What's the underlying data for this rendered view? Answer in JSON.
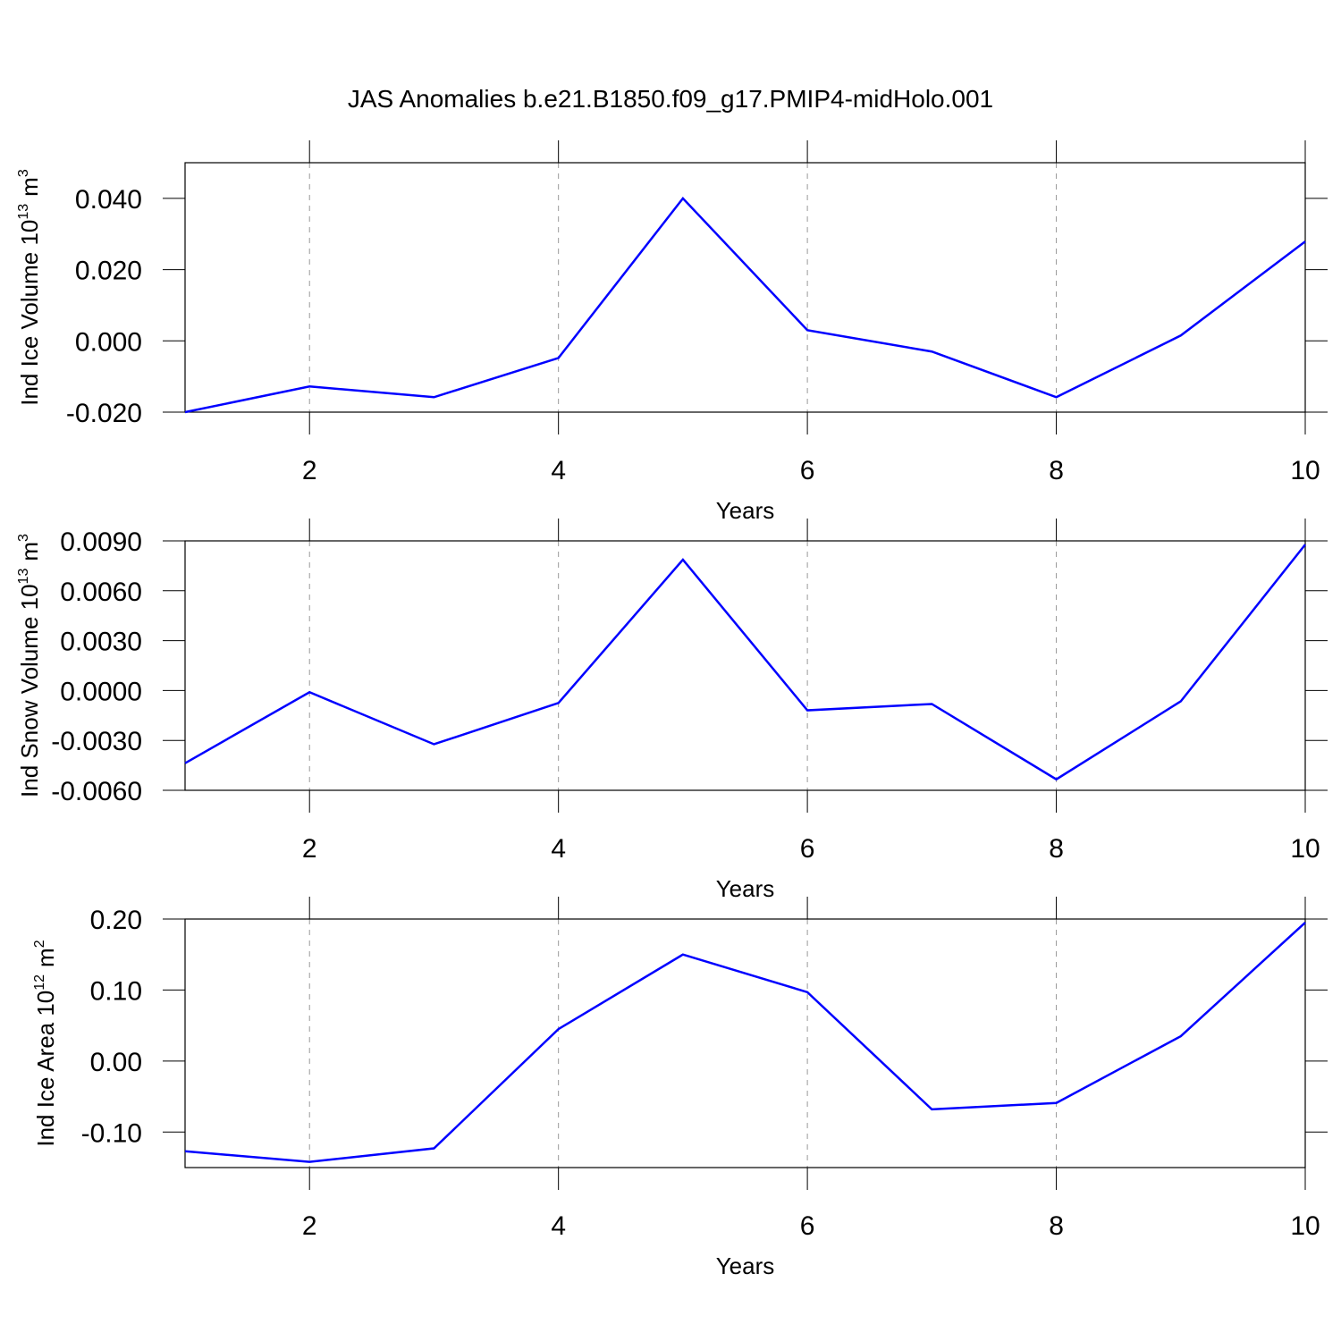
{
  "title": "JAS Anomalies b.e21.B1850.f09_g17.PMIP4-midHolo.001",
  "chart_data": [
    {
      "type": "line",
      "xlabel": "Years",
      "ylabel": {
        "text": "Ind Ice Volume 10",
        "exponent": "13",
        "unit": "m",
        "unit_exponent": "3"
      },
      "x": [
        1,
        2,
        3,
        4,
        5,
        6,
        7,
        8,
        9,
        10
      ],
      "values": [
        -0.02,
        -0.0128,
        -0.0158,
        -0.0048,
        0.04,
        0.003,
        -0.003,
        -0.0158,
        0.0015,
        0.0279
      ],
      "color": "#0000ff",
      "xlim": [
        1,
        10
      ],
      "xticks": [
        2,
        4,
        6,
        8,
        10
      ],
      "ylim": [
        -0.02,
        0.05
      ],
      "yticks": [
        {
          "value": -0.02,
          "label": "-0.020"
        },
        {
          "value": 0,
          "label": "0.000"
        },
        {
          "value": 0.02,
          "label": "0.020"
        },
        {
          "value": 0.04,
          "label": "0.040"
        }
      ],
      "grid": true
    },
    {
      "type": "line",
      "xlabel": "Years",
      "ylabel": {
        "text": "Ind Snow Volume 10",
        "exponent": "13",
        "unit": "m",
        "unit_exponent": "3"
      },
      "x": [
        1,
        2,
        3,
        4,
        5,
        6,
        7,
        8,
        9,
        10
      ],
      "values": [
        -0.00437,
        -0.0001,
        -0.00323,
        -0.00075,
        0.00787,
        -0.00119,
        -0.00081,
        -0.00534,
        -0.00065,
        0.00878
      ],
      "color": "#0000ff",
      "xlim": [
        1,
        10
      ],
      "xticks": [
        2,
        4,
        6,
        8,
        10
      ],
      "ylim": [
        -0.006,
        0.009
      ],
      "yticks": [
        {
          "value": -0.006,
          "label": "-0.0060"
        },
        {
          "value": -0.003,
          "label": "-0.0030"
        },
        {
          "value": 0,
          "label": "0.0000"
        },
        {
          "value": 0.003,
          "label": "0.0030"
        },
        {
          "value": 0.006,
          "label": "0.0060"
        },
        {
          "value": 0.009,
          "label": "0.0090"
        }
      ],
      "grid": true
    },
    {
      "type": "line",
      "xlabel": "Years",
      "ylabel": {
        "text": "Ind Ice Area 10",
        "exponent": "12",
        "unit": "m",
        "unit_exponent": "2"
      },
      "x": [
        1,
        2,
        3,
        4,
        5,
        6,
        7,
        8,
        9,
        10
      ],
      "values": [
        -0.127,
        -0.142,
        -0.123,
        0.045,
        0.15,
        0.097,
        -0.068,
        -0.059,
        0.035,
        0.195
      ],
      "color": "#0000ff",
      "xlim": [
        1,
        10
      ],
      "xticks": [
        2,
        4,
        6,
        8,
        10
      ],
      "ylim": [
        -0.15,
        0.2
      ],
      "yticks": [
        {
          "value": -0.1,
          "label": "-0.10"
        },
        {
          "value": 0,
          "label": "0.00"
        },
        {
          "value": 0.1,
          "label": "0.10"
        },
        {
          "value": 0.2,
          "label": "0.20"
        }
      ],
      "grid": true
    }
  ]
}
